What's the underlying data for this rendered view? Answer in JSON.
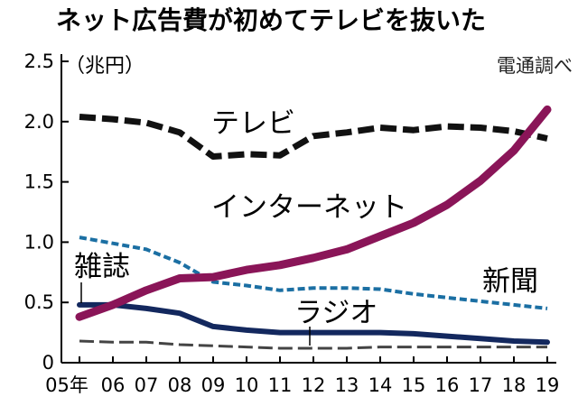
{
  "title": "ネット広告費が初めてテレビを抜いた",
  "unit_label": "（兆円）",
  "source": "電通調べ",
  "chart_data": {
    "type": "line",
    "title": "ネット広告費が初めてテレビを抜いた",
    "ylabel": "（兆円）",
    "ylim": [
      0,
      2.5
    ],
    "yticks": [
      "0",
      "0.5",
      "1.0",
      "1.5",
      "2.0",
      "2.5"
    ],
    "x": [
      "05年",
      "06",
      "07",
      "08",
      "09",
      "10",
      "11",
      "12",
      "13",
      "14",
      "15",
      "16",
      "17",
      "18",
      "19"
    ],
    "grid": false,
    "series": [
      {
        "name": "テレビ",
        "color": "#111111",
        "dash": "long-dash-thick",
        "values": [
          2.04,
          2.02,
          1.99,
          1.91,
          1.71,
          1.73,
          1.72,
          1.88,
          1.91,
          1.95,
          1.93,
          1.96,
          1.95,
          1.92,
          1.86
        ]
      },
      {
        "name": "インターネット",
        "color": "#8a1558",
        "dash": "solid-thick",
        "values": [
          0.38,
          0.48,
          0.6,
          0.7,
          0.71,
          0.77,
          0.81,
          0.87,
          0.94,
          1.05,
          1.16,
          1.31,
          1.51,
          1.76,
          2.1
        ]
      },
      {
        "name": "新聞",
        "color": "#1b6fa3",
        "dash": "short-dash",
        "values": [
          1.04,
          0.99,
          0.94,
          0.83,
          0.67,
          0.64,
          0.6,
          0.62,
          0.62,
          0.61,
          0.57,
          0.54,
          0.51,
          0.48,
          0.45
        ]
      },
      {
        "name": "雑誌",
        "color": "#13285e",
        "dash": "solid",
        "values": [
          0.48,
          0.48,
          0.45,
          0.41,
          0.3,
          0.27,
          0.25,
          0.25,
          0.25,
          0.25,
          0.24,
          0.22,
          0.2,
          0.18,
          0.17
        ]
      },
      {
        "name": "ラジオ",
        "color": "#444444",
        "dash": "long-dash-thin",
        "values": [
          0.18,
          0.17,
          0.17,
          0.15,
          0.14,
          0.13,
          0.12,
          0.12,
          0.12,
          0.13,
          0.13,
          0.13,
          0.13,
          0.13,
          0.13
        ]
      }
    ]
  }
}
